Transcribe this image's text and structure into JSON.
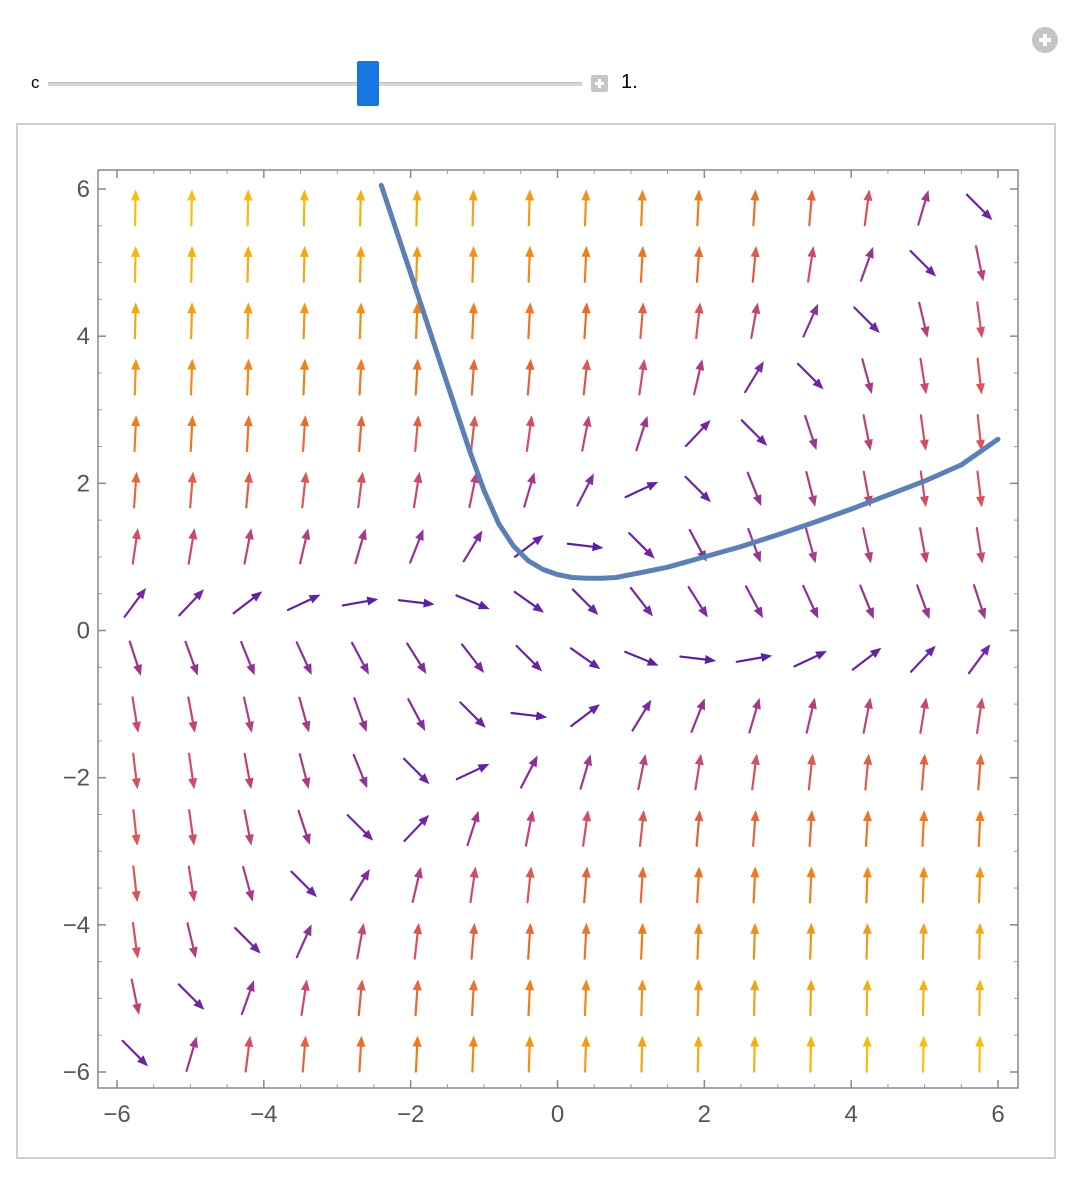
{
  "controls": {
    "parameter_label": "c",
    "parameter_value": "1.",
    "slider_fraction": 0.6
  },
  "chart_data": {
    "type": "vector-field",
    "title": "",
    "xlabel": "",
    "ylabel": "",
    "xlim": [
      -6.2,
      6.2
    ],
    "ylim": [
      -6.2,
      6.2
    ],
    "x_ticks": [
      "−6",
      "−4",
      "−2",
      "0",
      "2",
      "4",
      "6"
    ],
    "y_ticks": [
      "−6",
      "−4",
      "−2",
      "0",
      "2",
      "4",
      "6"
    ],
    "x_tick_values": [
      -6,
      -4,
      -2,
      0,
      2,
      4,
      6
    ],
    "y_tick_values": [
      -6,
      -4,
      -2,
      0,
      2,
      4,
      6
    ],
    "field": {
      "equation_x": "1",
      "equation_y": "y^2 - x*y - c",
      "c": 1.0,
      "grid_min": -5.75,
      "grid_max": 5.75,
      "grid_count": 16
    },
    "color_scale": [
      "#1a0fa0",
      "#7a2aa6",
      "#d24a6a",
      "#f07a1a",
      "#f5c010"
    ],
    "trajectory": {
      "color": "#5a80b6",
      "points": [
        [
          -2.4,
          6.05
        ],
        [
          -2.2,
          5.45
        ],
        [
          -2.0,
          4.85
        ],
        [
          -1.8,
          4.25
        ],
        [
          -1.6,
          3.65
        ],
        [
          -1.4,
          3.05
        ],
        [
          -1.2,
          2.45
        ],
        [
          -1.0,
          1.9
        ],
        [
          -0.8,
          1.45
        ],
        [
          -0.6,
          1.15
        ],
        [
          -0.4,
          0.95
        ],
        [
          -0.2,
          0.83
        ],
        [
          0.0,
          0.76
        ],
        [
          0.2,
          0.72
        ],
        [
          0.4,
          0.71
        ],
        [
          0.6,
          0.71
        ],
        [
          0.8,
          0.72
        ],
        [
          1.0,
          0.76
        ],
        [
          1.5,
          0.86
        ],
        [
          2.0,
          1.0
        ],
        [
          2.5,
          1.14
        ],
        [
          3.0,
          1.3
        ],
        [
          3.5,
          1.47
        ],
        [
          4.0,
          1.65
        ],
        [
          4.5,
          1.84
        ],
        [
          5.0,
          2.03
        ],
        [
          5.5,
          2.25
        ],
        [
          6.0,
          2.6
        ]
      ]
    }
  }
}
